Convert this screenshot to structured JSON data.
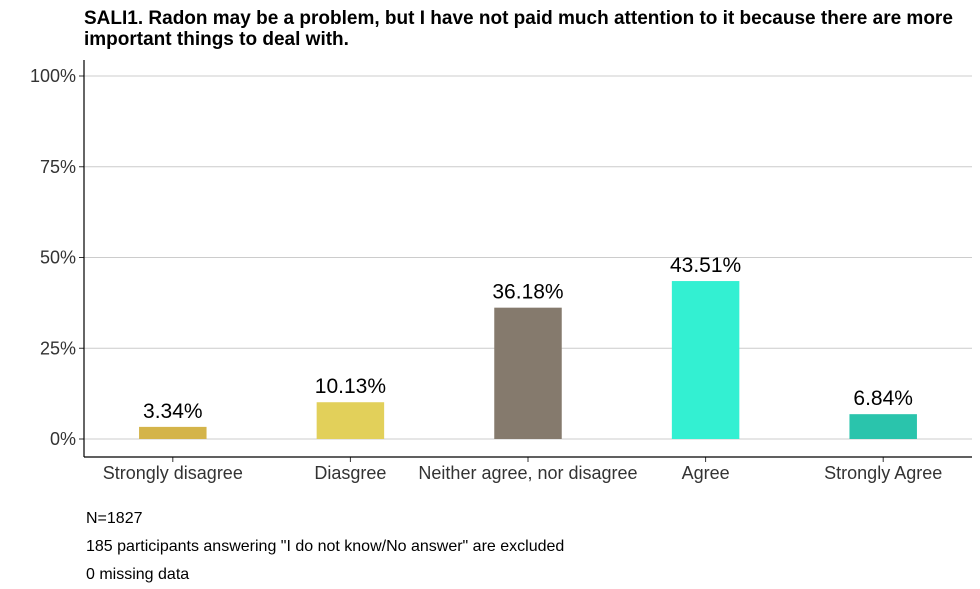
{
  "chart_data": {
    "type": "bar",
    "title": "SALI1. Radon may be a problem, but I have not paid much attention to it because there are more important things to deal with.",
    "categories": [
      "Strongly disagree",
      "Diasgree",
      "Neither agree, nor disagree",
      "Agree",
      "Strongly Agree"
    ],
    "values": [
      3.34,
      10.13,
      36.18,
      43.51,
      6.84
    ],
    "value_labels": [
      "3.34%",
      "10.13%",
      "36.18%",
      "43.51%",
      "6.84%"
    ],
    "colors": [
      "#D4B44A",
      "#E2D05A",
      "#857A6D",
      "#33F0D2",
      "#2AC4AC"
    ],
    "ylim": [
      0,
      100
    ],
    "yticks": [
      0,
      25,
      50,
      75,
      100
    ],
    "ytick_labels": [
      "0%",
      "25%",
      "50%",
      "75%",
      "100%"
    ],
    "xlabel": "",
    "ylabel": "",
    "grid": "horizontal",
    "legend": "none"
  },
  "notes": {
    "n": "N=1827",
    "excluded": "185 participants answering \"I do not know/No answer\" are excluded",
    "missing": "0 missing data"
  }
}
